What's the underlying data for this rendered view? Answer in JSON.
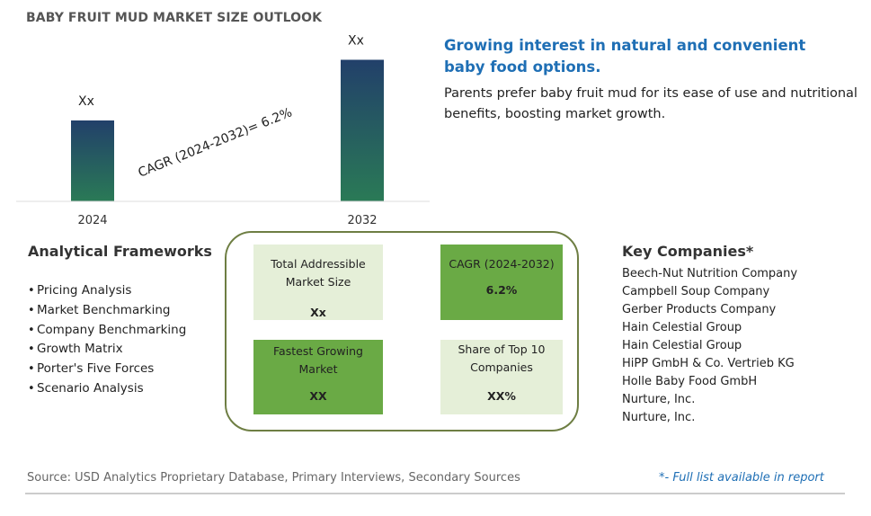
{
  "title": "BABY FRUIT MUD MARKET SIZE OUTLOOK",
  "chart_data": {
    "type": "bar",
    "categories": [
      "2024",
      "2032"
    ],
    "values": [
      1.0,
      1.75
    ],
    "data_labels": [
      "Xx",
      "Xx"
    ],
    "annotation": "CAGR (2024-2032)=  6.2%",
    "colors": {
      "bar_top": "#22406a",
      "bar_bottom": "#2a7a56"
    }
  },
  "headline": "Growing interest in natural and convenient baby food options.",
  "description": "Parents prefer baby fruit mud for its ease of use and nutritional benefits, boosting market growth.",
  "analytical_frameworks": {
    "title": "Analytical Frameworks",
    "items": [
      "Pricing Analysis",
      "Market Benchmarking",
      "Company Benchmarking",
      "Growth Matrix",
      "Porter's Five Forces",
      "Scenario Analysis"
    ]
  },
  "metrics": [
    {
      "label": "Total Addressible Market Size",
      "value": "Xx"
    },
    {
      "label": "CAGR (2024-2032)",
      "value": "6.2%"
    },
    {
      "label": "Fastest Growing Market",
      "value": "XX"
    },
    {
      "label": "Share of Top 10 Companies",
      "value": "XX%"
    }
  ],
  "metric_colors": {
    "light": "#e5efd8",
    "dark": "#6aaa45",
    "border": "#6e7e43"
  },
  "key_companies": {
    "title": "Key Companies*",
    "items": [
      "Beech-Nut Nutrition Company",
      "Campbell Soup Company",
      "Gerber Products Company",
      "Hain Celestial Group",
      "Hain Celestial Group",
      "HiPP GmbH & Co. Vertrieb KG",
      "Holle Baby Food GmbH",
      "Nurture, Inc.",
      "Nurture, Inc."
    ]
  },
  "footer": {
    "source": "Source: USD Analytics Proprietary Database, Primary Interviews, Secondary Sources",
    "note": "*- Full list available in report"
  }
}
